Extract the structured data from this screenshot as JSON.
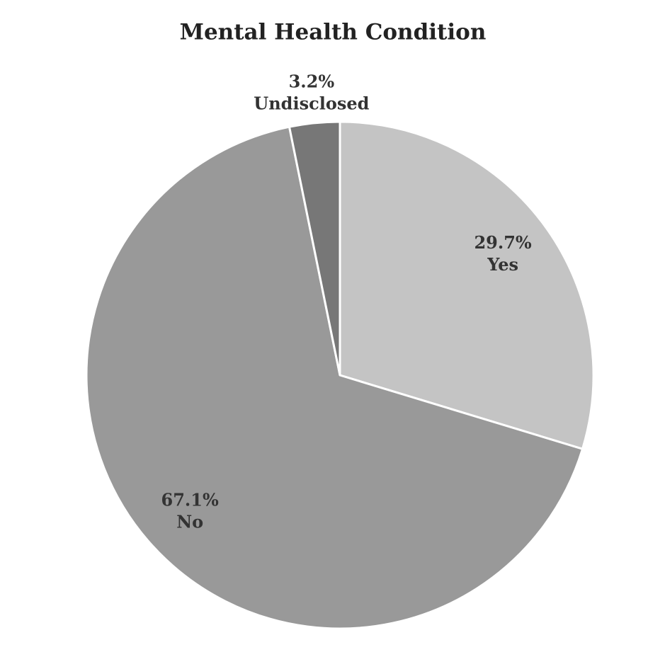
{
  "chart_data": {
    "type": "pie",
    "title": "Mental Health Condition",
    "categories": [
      "Yes",
      "No",
      "Undisclosed"
    ],
    "values": [
      29.7,
      67.1,
      3.2
    ],
    "value_labels": [
      "29.7%",
      "67.1%",
      "3.2%"
    ],
    "colors": [
      "#c4c4c4",
      "#999999",
      "#777777"
    ]
  }
}
